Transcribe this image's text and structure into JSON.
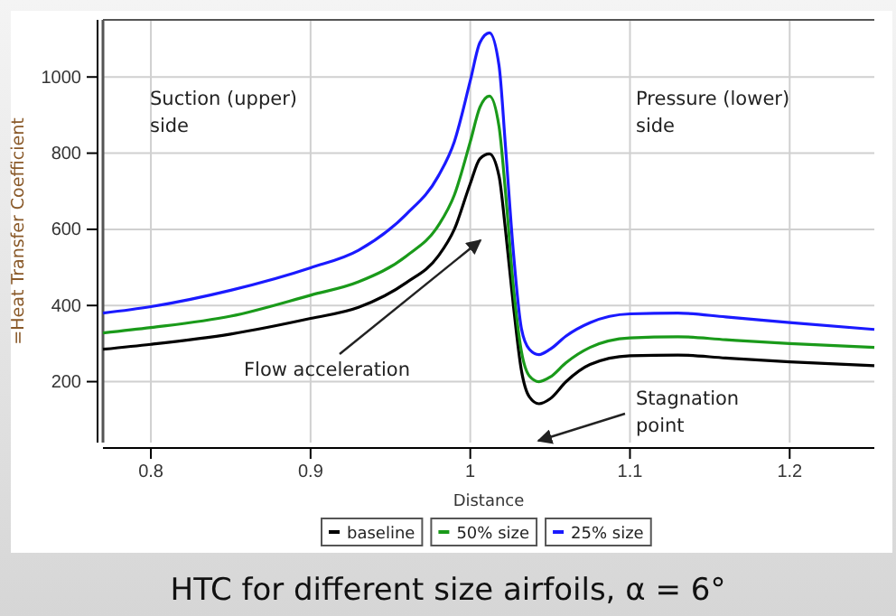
{
  "chart_data": {
    "type": "line",
    "title": "HTC for different size airfoils, α = 6°",
    "xlabel": "Distance",
    "ylabel": "=Heat Transfer Coefficient",
    "x": [
      0.77,
      0.8,
      0.85,
      0.9,
      0.93,
      0.96,
      0.98,
      0.99,
      1.0,
      1.006,
      1.012,
      1.018,
      1.022,
      1.027,
      1.032,
      1.037,
      1.043,
      1.05,
      1.06,
      1.075,
      1.1,
      1.13,
      1.16,
      1.2,
      1.253
    ],
    "series": [
      {
        "name": "baseline",
        "color": "#000000",
        "values": [
          285,
          298,
          325,
          366,
          395,
          460,
          530,
          600,
          720,
          785,
          798,
          740,
          600,
          400,
          230,
          160,
          142,
          155,
          200,
          245,
          268,
          270,
          262,
          252,
          242
        ]
      },
      {
        "name": "50% size",
        "color": "#1a9a1a",
        "values": [
          328,
          342,
          372,
          427,
          462,
          530,
          610,
          690,
          830,
          920,
          950,
          870,
          700,
          450,
          280,
          215,
          200,
          212,
          250,
          290,
          315,
          318,
          310,
          300,
          290
        ]
      },
      {
        "name": "25% size",
        "color": "#1a1aff",
        "values": [
          380,
          397,
          440,
          499,
          545,
          640,
          740,
          830,
          990,
          1090,
          1116,
          1030,
          820,
          540,
          340,
          285,
          271,
          285,
          320,
          355,
          378,
          380,
          370,
          355,
          337
        ]
      }
    ],
    "xlim": [
      0.77,
      1.253
    ],
    "ylim": [
      40,
      1150
    ],
    "xticks": [
      0.8,
      0.9,
      1,
      1.1,
      1.2
    ],
    "yticks": [
      200,
      400,
      600,
      800,
      1000
    ],
    "grid": true,
    "legend": "bottom",
    "line_style": "solid",
    "marker": "none",
    "annotations": [
      "Suction (upper)\nside",
      "Pressure (lower)\nside",
      "Flow acceleration",
      "Stagnation\npoint"
    ]
  }
}
